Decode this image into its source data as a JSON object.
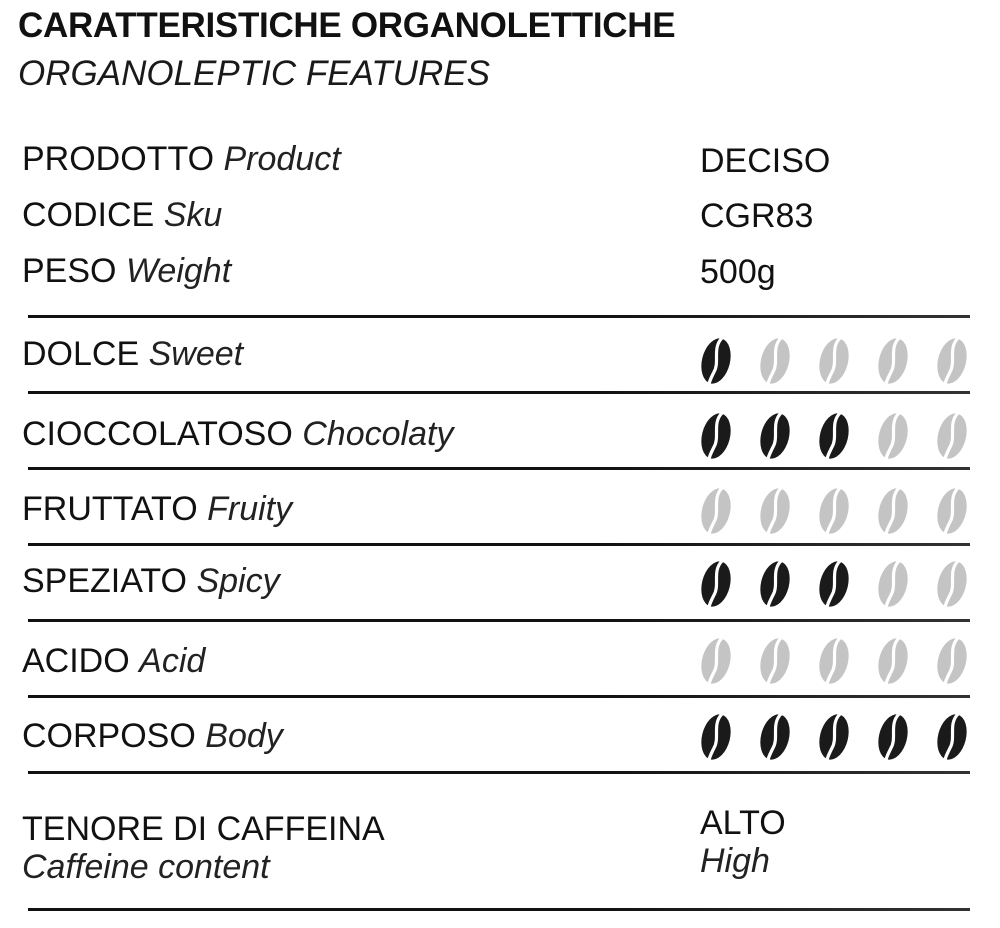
{
  "header": {
    "title": "CARATTERISTICHE ORGANOLETTICHE",
    "subtitle": "ORGANOLEPTIC FEATURES"
  },
  "info": [
    {
      "label": "PRODOTTO",
      "label_en": "Product",
      "value": "DECISO"
    },
    {
      "label": "CODICE",
      "label_en": "Sku",
      "value": "CGR83"
    },
    {
      "label": "PESO",
      "label_en": "Weight",
      "value": "500g"
    }
  ],
  "ratings_max": 5,
  "ratings": [
    {
      "label": "DOLCE",
      "label_en": "Sweet",
      "value": 1
    },
    {
      "label": "CIOCCOLATOSO",
      "label_en": "Chocolaty",
      "value": 3
    },
    {
      "label": "FRUTTATO",
      "label_en": "Fruity",
      "value": 0
    },
    {
      "label": "SPEZIATO",
      "label_en": "Spicy",
      "value": 3
    },
    {
      "label": "ACIDO",
      "label_en": "Acid",
      "value": 0
    },
    {
      "label": "CORPOSO",
      "label_en": "Body",
      "value": 5
    }
  ],
  "caffeine": {
    "label": "TENORE DI CAFFEINA",
    "label_en": "Caffeine content",
    "value": "ALTO",
    "value_en": "High"
  },
  "icons": {
    "rating": "coffee-bean-icon"
  },
  "colors": {
    "filled": "#1a1a1a",
    "empty": "#c4c4c4"
  }
}
